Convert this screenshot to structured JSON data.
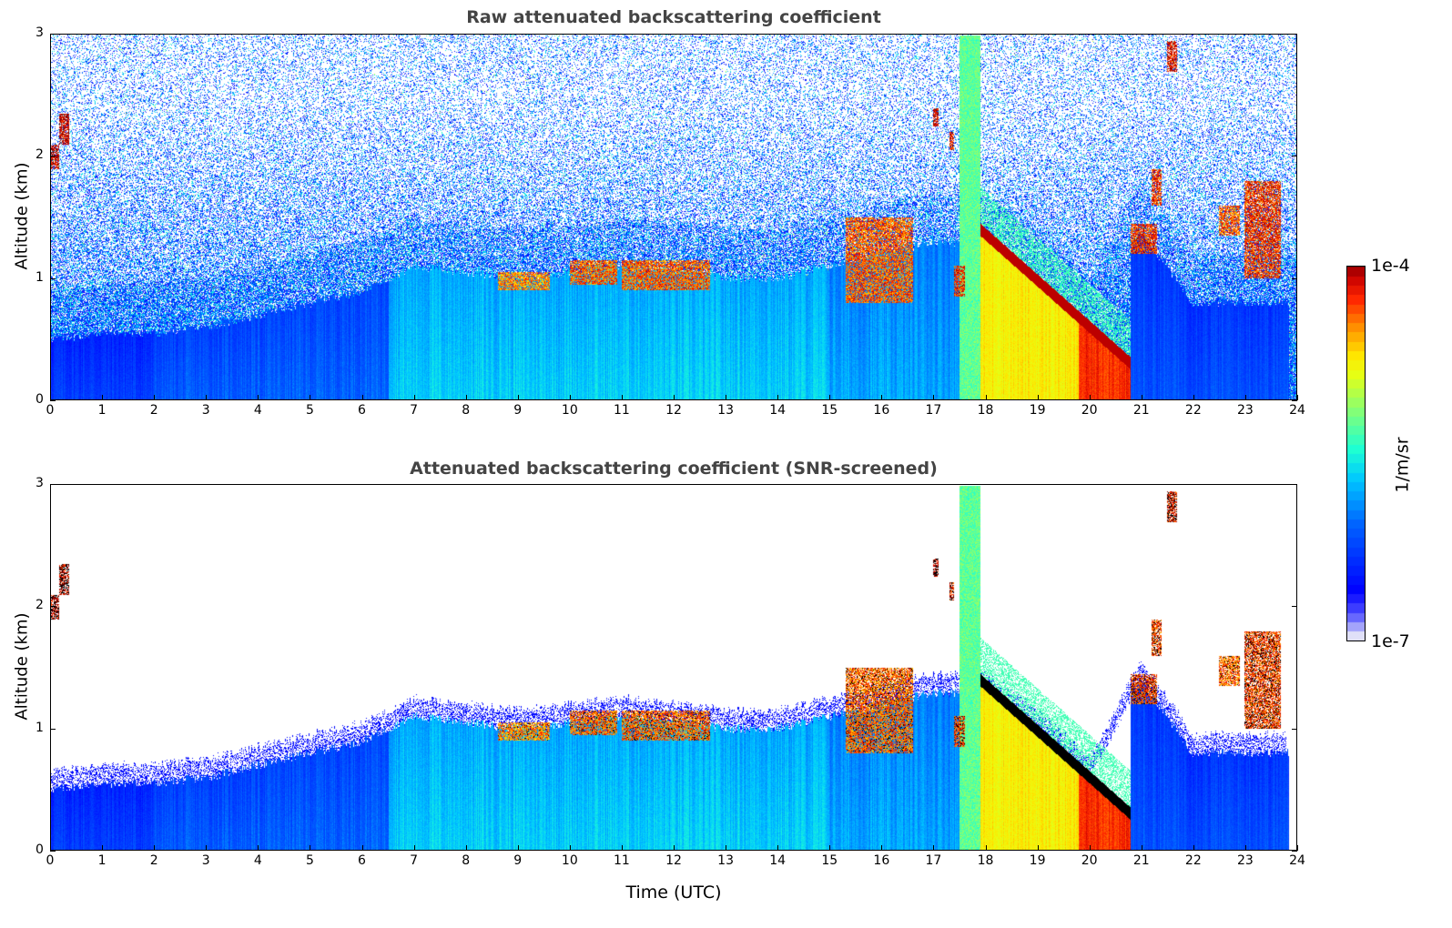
{
  "chart_data": [
    {
      "type": "heatmap",
      "title": "Raw attenuated backscattering coefficient",
      "xlabel": "",
      "ylabel": "Altitude (km)",
      "xlim": [
        0,
        24
      ],
      "ylim": [
        0,
        3
      ],
      "screened": false
    },
    {
      "type": "heatmap",
      "title": "Attenuated backscattering coefficient (SNR-screened)",
      "xlabel": "Time (UTC)",
      "ylabel": "Altitude (km)",
      "xlim": [
        0,
        24
      ],
      "ylim": [
        0,
        3
      ],
      "screened": true
    }
  ],
  "x_ticks": [
    "0",
    "1",
    "2",
    "3",
    "4",
    "5",
    "6",
    "7",
    "8",
    "9",
    "10",
    "11",
    "12",
    "13",
    "14",
    "15",
    "16",
    "17",
    "18",
    "19",
    "20",
    "21",
    "22",
    "23",
    "24"
  ],
  "y_ticks": [
    "0",
    "1",
    "2",
    "3"
  ],
  "colorbar": {
    "min_label": "1e-7",
    "max_label": "1e-4",
    "unit": "1/m/sr",
    "min": 1e-07,
    "max": 0.0001,
    "scale": "log",
    "colormap": "jet"
  },
  "aerosol_layer_top_km": [
    0.5,
    0.55,
    0.55,
    0.6,
    0.7,
    0.8,
    0.9,
    1.1,
    1.05,
    1.0,
    1.05,
    1.1,
    1.05,
    1.0,
    1.0,
    1.1,
    1.2,
    1.3,
    1.3,
    1.0,
    0.6,
    1.4,
    0.8,
    0.8,
    0.8
  ],
  "clouds": [
    {
      "t": [
        0.0,
        0.15
      ],
      "z": [
        1.9,
        2.1
      ],
      "log": -4.1
    },
    {
      "t": [
        0.15,
        0.35
      ],
      "z": [
        2.1,
        2.35
      ],
      "log": -4.1
    },
    {
      "t": [
        8.6,
        9.6
      ],
      "z": [
        0.9,
        1.05
      ],
      "log": -4.5
    },
    {
      "t": [
        10.0,
        10.9
      ],
      "z": [
        0.95,
        1.15
      ],
      "log": -4.4
    },
    {
      "t": [
        11.0,
        12.7
      ],
      "z": [
        0.9,
        1.15
      ],
      "log": -4.4
    },
    {
      "t": [
        15.3,
        16.6
      ],
      "z": [
        0.8,
        1.5
      ],
      "log": -4.4
    },
    {
      "t": [
        17.0,
        17.1
      ],
      "z": [
        2.25,
        2.4
      ],
      "log": -4.1
    },
    {
      "t": [
        17.3,
        17.4
      ],
      "z": [
        2.05,
        2.2
      ],
      "log": -4.2
    },
    {
      "t": [
        17.4,
        17.6
      ],
      "z": [
        0.85,
        1.1
      ],
      "log": -4.3
    },
    {
      "t": [
        20.8,
        21.3
      ],
      "z": [
        1.2,
        1.45
      ],
      "log": -4.3
    },
    {
      "t": [
        21.2,
        21.4
      ],
      "z": [
        1.6,
        1.9
      ],
      "log": -4.3
    },
    {
      "t": [
        21.5,
        21.7
      ],
      "z": [
        2.7,
        2.95
      ],
      "log": -4.2
    },
    {
      "t": [
        22.5,
        22.9
      ],
      "z": [
        1.35,
        1.6
      ],
      "log": -4.4
    },
    {
      "t": [
        23.0,
        23.7
      ],
      "z": [
        1.0,
        1.8
      ],
      "log": -4.3
    }
  ],
  "precipitation": {
    "t": [
      17.9,
      20.8
    ],
    "top_km_start": 1.35,
    "top_km_end": 0.25,
    "log": -4.8
  }
}
